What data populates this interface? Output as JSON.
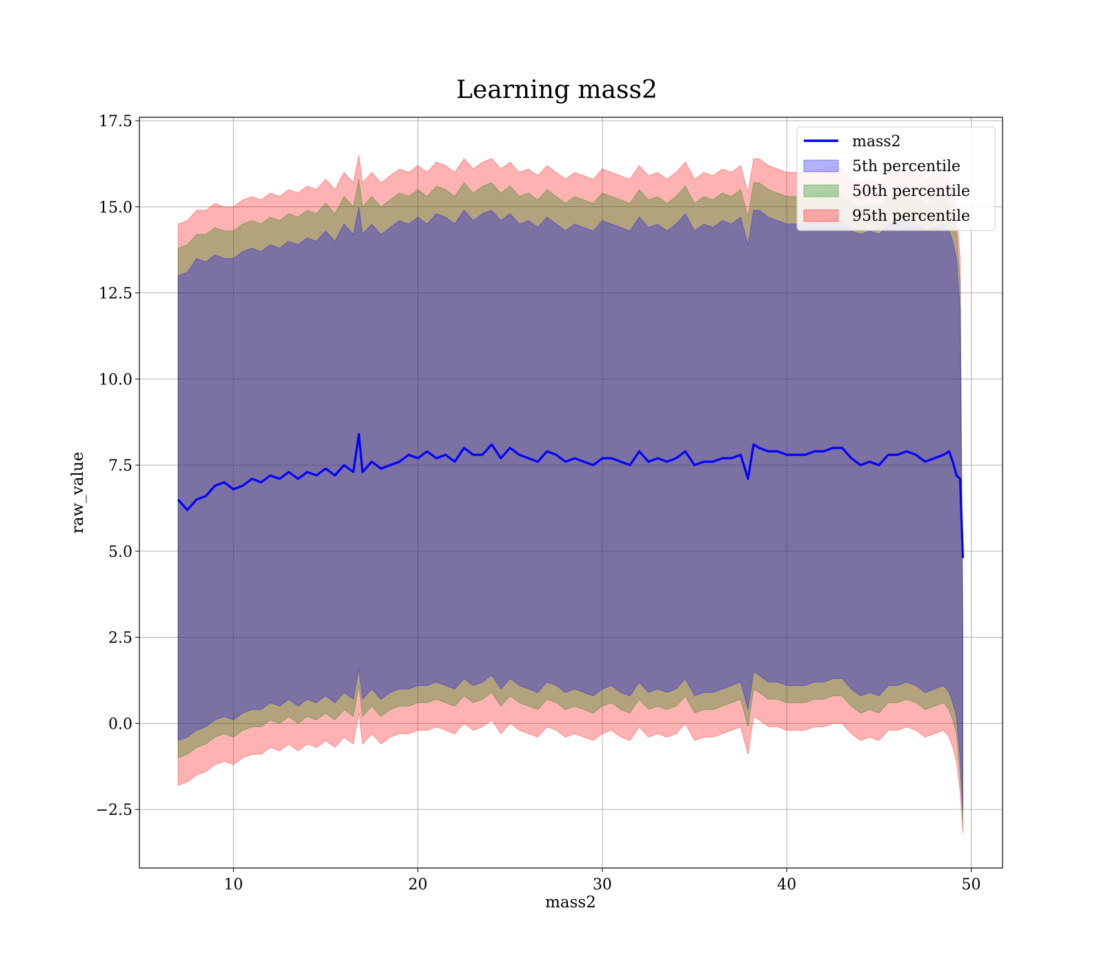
{
  "chart_data": {
    "type": "area",
    "title": "Learning mass2",
    "xlabel": "mass2",
    "ylabel": "raw_value",
    "xlim": [
      4.9,
      51.7
    ],
    "ylim": [
      -4.2,
      17.6
    ],
    "xticks": [
      10,
      20,
      30,
      40,
      50
    ],
    "xtick_labels": [
      "10",
      "20",
      "30",
      "40",
      "50"
    ],
    "yticks": [
      -2.5,
      0.0,
      2.5,
      5.0,
      7.5,
      10.0,
      12.5,
      15.0,
      17.5
    ],
    "ytick_labels": [
      "−2.5",
      "0.0",
      "2.5",
      "5.0",
      "7.5",
      "10.0",
      "12.5",
      "15.0",
      "17.5"
    ],
    "grid": true,
    "legend_position": "top-right",
    "legend": [
      {
        "label": "mass2",
        "kind": "line"
      },
      {
        "label": "5th percentile",
        "kind": "patch"
      },
      {
        "label": "50th percentile",
        "kind": "patch"
      },
      {
        "label": "95th percentile",
        "kind": "patch"
      }
    ],
    "x": [
      7.0,
      7.5,
      8.0,
      8.5,
      9.0,
      9.5,
      10.0,
      10.5,
      11.0,
      11.5,
      12.0,
      12.5,
      13.0,
      13.5,
      14.0,
      14.5,
      15.0,
      15.5,
      16.0,
      16.5,
      16.8,
      17.0,
      17.5,
      18.0,
      18.5,
      19.0,
      19.5,
      20.0,
      20.5,
      21.0,
      21.5,
      22.0,
      22.5,
      23.0,
      23.5,
      24.0,
      24.5,
      25.0,
      25.5,
      26.0,
      26.5,
      27.0,
      27.5,
      28.0,
      28.5,
      29.0,
      29.5,
      30.0,
      30.5,
      31.0,
      31.5,
      32.0,
      32.5,
      33.0,
      33.5,
      34.0,
      34.5,
      35.0,
      35.5,
      36.0,
      36.5,
      37.0,
      37.5,
      37.9,
      38.2,
      38.5,
      39.0,
      39.5,
      40.0,
      40.5,
      41.0,
      41.5,
      42.0,
      42.5,
      43.0,
      43.5,
      44.0,
      44.5,
      45.0,
      45.5,
      46.0,
      46.5,
      47.0,
      47.5,
      48.0,
      48.5,
      48.8,
      49.0,
      49.2,
      49.4,
      49.55
    ],
    "series": [
      {
        "name": "mass2",
        "color": "#0000ff",
        "values": [
          6.5,
          6.2,
          6.5,
          6.6,
          6.9,
          7.0,
          6.8,
          6.9,
          7.1,
          7.0,
          7.2,
          7.1,
          7.3,
          7.1,
          7.3,
          7.2,
          7.4,
          7.2,
          7.5,
          7.3,
          8.4,
          7.3,
          7.6,
          7.4,
          7.5,
          7.6,
          7.8,
          7.7,
          7.9,
          7.7,
          7.8,
          7.6,
          8.0,
          7.8,
          7.8,
          8.1,
          7.7,
          8.0,
          7.8,
          7.7,
          7.6,
          7.9,
          7.8,
          7.6,
          7.7,
          7.6,
          7.5,
          7.7,
          7.7,
          7.6,
          7.5,
          7.9,
          7.6,
          7.7,
          7.6,
          7.7,
          7.9,
          7.5,
          7.6,
          7.6,
          7.7,
          7.7,
          7.8,
          7.1,
          8.1,
          8.0,
          7.9,
          7.9,
          7.8,
          7.8,
          7.8,
          7.9,
          7.9,
          8.0,
          8.0,
          7.7,
          7.5,
          7.6,
          7.5,
          7.8,
          7.8,
          7.9,
          7.8,
          7.6,
          7.7,
          7.8,
          7.9,
          7.6,
          7.2,
          7.1,
          4.8
        ]
      },
      {
        "name": "5th percentile",
        "color": "#0000ff",
        "upper": [
          13.0,
          13.1,
          13.5,
          13.4,
          13.6,
          13.5,
          13.5,
          13.7,
          13.8,
          13.7,
          13.9,
          13.8,
          14.0,
          13.9,
          14.1,
          14.0,
          14.3,
          14.0,
          14.5,
          14.2,
          15.0,
          14.2,
          14.5,
          14.2,
          14.4,
          14.6,
          14.5,
          14.7,
          14.5,
          14.8,
          14.7,
          14.5,
          14.9,
          14.6,
          14.8,
          14.9,
          14.6,
          14.8,
          14.5,
          14.6,
          14.4,
          14.7,
          14.5,
          14.3,
          14.5,
          14.4,
          14.3,
          14.6,
          14.5,
          14.4,
          14.3,
          14.7,
          14.4,
          14.5,
          14.3,
          14.5,
          14.8,
          14.3,
          14.5,
          14.4,
          14.6,
          14.5,
          14.7,
          13.9,
          14.9,
          14.9,
          14.7,
          14.6,
          14.5,
          14.5,
          14.5,
          14.6,
          14.6,
          14.7,
          14.6,
          14.3,
          14.2,
          14.3,
          14.2,
          14.5,
          14.5,
          14.6,
          14.5,
          14.3,
          14.4,
          14.5,
          14.3,
          14.0,
          13.5,
          12.0,
          2.0
        ],
        "lower": [
          -0.5,
          -0.4,
          -0.2,
          -0.1,
          0.1,
          0.2,
          0.1,
          0.3,
          0.4,
          0.4,
          0.6,
          0.5,
          0.7,
          0.5,
          0.7,
          0.6,
          0.8,
          0.6,
          0.9,
          0.7,
          1.6,
          0.7,
          1.0,
          0.7,
          0.9,
          1.0,
          1.0,
          1.1,
          1.1,
          1.2,
          1.1,
          1.0,
          1.3,
          1.1,
          1.2,
          1.4,
          1.0,
          1.3,
          1.1,
          1.0,
          0.9,
          1.2,
          1.1,
          0.9,
          1.0,
          0.9,
          0.8,
          1.0,
          1.1,
          0.9,
          0.8,
          1.2,
          0.9,
          1.0,
          0.9,
          1.0,
          1.3,
          0.8,
          0.9,
          0.9,
          1.0,
          1.1,
          1.2,
          0.4,
          1.5,
          1.4,
          1.2,
          1.2,
          1.1,
          1.1,
          1.1,
          1.2,
          1.2,
          1.3,
          1.3,
          1.0,
          0.8,
          0.9,
          0.8,
          1.1,
          1.1,
          1.2,
          1.1,
          0.9,
          1.0,
          1.1,
          0.9,
          0.6,
          0.2,
          -1.0,
          -2.5
        ]
      },
      {
        "name": "50th percentile",
        "color": "#008000",
        "upper": [
          13.8,
          13.9,
          14.2,
          14.2,
          14.4,
          14.3,
          14.3,
          14.5,
          14.6,
          14.5,
          14.7,
          14.6,
          14.8,
          14.7,
          14.9,
          14.8,
          15.1,
          14.8,
          15.3,
          15.0,
          15.8,
          15.0,
          15.3,
          15.0,
          15.2,
          15.4,
          15.3,
          15.5,
          15.3,
          15.6,
          15.5,
          15.3,
          15.7,
          15.4,
          15.6,
          15.7,
          15.4,
          15.6,
          15.3,
          15.4,
          15.2,
          15.5,
          15.3,
          15.1,
          15.3,
          15.2,
          15.1,
          15.4,
          15.3,
          15.2,
          15.1,
          15.5,
          15.2,
          15.3,
          15.1,
          15.3,
          15.6,
          15.1,
          15.3,
          15.2,
          15.4,
          15.3,
          15.5,
          14.7,
          15.7,
          15.7,
          15.5,
          15.4,
          15.3,
          15.3,
          15.3,
          15.4,
          15.4,
          15.5,
          15.4,
          15.1,
          15.0,
          15.1,
          15.0,
          15.3,
          15.3,
          15.4,
          15.3,
          15.1,
          15.2,
          15.3,
          15.1,
          14.8,
          14.3,
          12.8,
          2.5
        ],
        "lower": [
          -1.0,
          -0.9,
          -0.7,
          -0.6,
          -0.4,
          -0.3,
          -0.4,
          -0.2,
          -0.1,
          -0.1,
          0.1,
          0.0,
          0.2,
          0.0,
          0.2,
          0.1,
          0.3,
          0.1,
          0.4,
          0.2,
          1.1,
          0.2,
          0.5,
          0.2,
          0.4,
          0.5,
          0.5,
          0.6,
          0.6,
          0.7,
          0.6,
          0.5,
          0.8,
          0.6,
          0.7,
          0.9,
          0.5,
          0.8,
          0.6,
          0.5,
          0.4,
          0.7,
          0.6,
          0.4,
          0.5,
          0.4,
          0.3,
          0.5,
          0.6,
          0.4,
          0.3,
          0.7,
          0.4,
          0.5,
          0.4,
          0.5,
          0.8,
          0.3,
          0.4,
          0.4,
          0.5,
          0.6,
          0.7,
          -0.1,
          1.0,
          0.9,
          0.7,
          0.7,
          0.6,
          0.6,
          0.6,
          0.7,
          0.7,
          0.8,
          0.8,
          0.5,
          0.3,
          0.4,
          0.3,
          0.6,
          0.6,
          0.7,
          0.6,
          0.4,
          0.5,
          0.6,
          0.4,
          0.1,
          -0.3,
          -1.5,
          -2.8
        ]
      },
      {
        "name": "95th percentile",
        "color": "#ff0000",
        "upper": [
          14.5,
          14.6,
          14.9,
          14.9,
          15.1,
          15.0,
          15.0,
          15.2,
          15.3,
          15.2,
          15.4,
          15.3,
          15.5,
          15.4,
          15.6,
          15.5,
          15.8,
          15.5,
          16.0,
          15.7,
          16.5,
          15.7,
          16.0,
          15.7,
          15.9,
          16.1,
          16.0,
          16.2,
          16.0,
          16.3,
          16.2,
          16.0,
          16.4,
          16.1,
          16.3,
          16.4,
          16.1,
          16.3,
          16.0,
          16.1,
          15.9,
          16.2,
          16.0,
          15.8,
          16.0,
          15.9,
          15.8,
          16.1,
          16.0,
          15.9,
          15.8,
          16.2,
          15.9,
          16.0,
          15.8,
          16.0,
          16.3,
          15.8,
          16.0,
          15.9,
          16.1,
          16.0,
          16.2,
          15.4,
          16.4,
          16.4,
          16.2,
          16.1,
          16.0,
          16.0,
          16.0,
          16.1,
          16.1,
          16.2,
          16.1,
          15.8,
          15.7,
          15.8,
          15.7,
          16.0,
          16.0,
          16.1,
          16.0,
          15.8,
          15.9,
          16.0,
          15.8,
          15.5,
          15.0,
          13.5,
          3.0
        ],
        "lower": [
          -1.8,
          -1.7,
          -1.5,
          -1.4,
          -1.2,
          -1.1,
          -1.2,
          -1.0,
          -0.9,
          -0.9,
          -0.7,
          -0.8,
          -0.6,
          -0.8,
          -0.6,
          -0.7,
          -0.5,
          -0.7,
          -0.4,
          -0.6,
          0.3,
          -0.6,
          -0.3,
          -0.6,
          -0.4,
          -0.3,
          -0.3,
          -0.2,
          -0.2,
          -0.1,
          -0.2,
          -0.3,
          0.0,
          -0.2,
          -0.1,
          0.1,
          -0.3,
          0.0,
          -0.2,
          -0.3,
          -0.4,
          -0.1,
          -0.2,
          -0.4,
          -0.3,
          -0.4,
          -0.5,
          -0.3,
          -0.2,
          -0.4,
          -0.5,
          -0.1,
          -0.4,
          -0.3,
          -0.4,
          -0.3,
          0.0,
          -0.5,
          -0.4,
          -0.4,
          -0.3,
          -0.2,
          -0.1,
          -0.9,
          0.2,
          0.1,
          -0.1,
          -0.1,
          -0.2,
          -0.2,
          -0.2,
          -0.1,
          -0.1,
          0.0,
          0.0,
          -0.3,
          -0.5,
          -0.4,
          -0.5,
          -0.2,
          -0.2,
          -0.1,
          -0.2,
          -0.4,
          -0.3,
          -0.2,
          -0.4,
          -0.7,
          -1.1,
          -2.0,
          -3.2
        ]
      }
    ]
  }
}
